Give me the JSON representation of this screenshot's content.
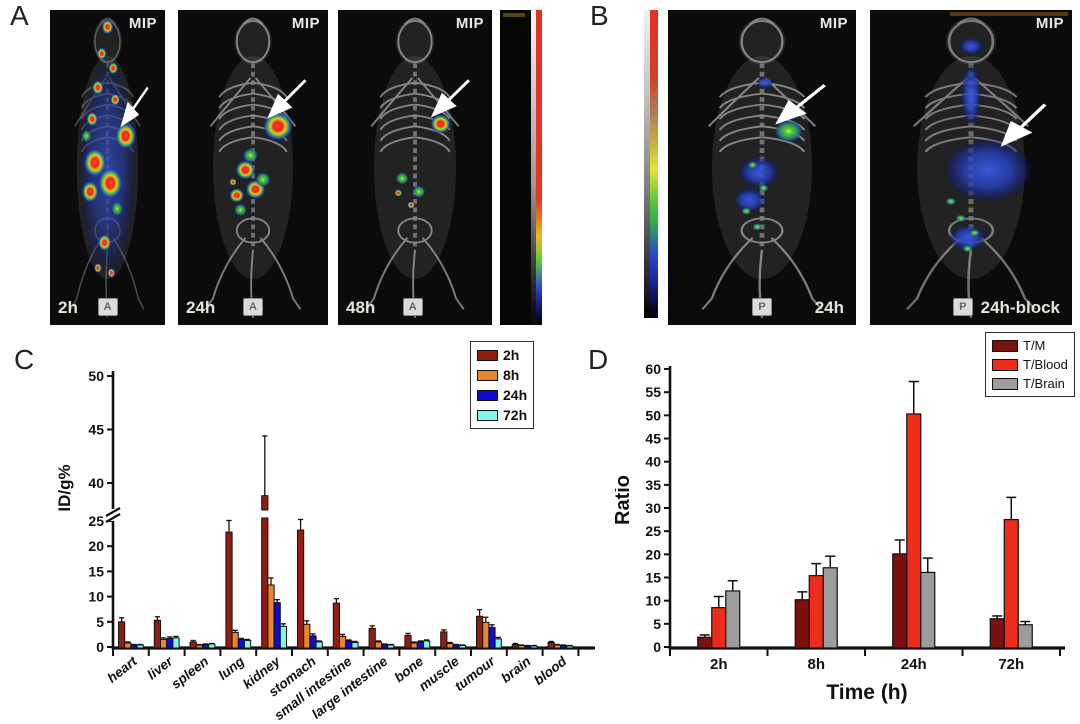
{
  "figure": {
    "panels": {
      "A": {
        "label": "A",
        "images": [
          {
            "mip_label": "MIP",
            "time_label": "2h",
            "orientation_badge": "A"
          },
          {
            "mip_label": "MIP",
            "time_label": "24h",
            "orientation_badge": "A"
          },
          {
            "mip_label": "MIP",
            "time_label": "48h",
            "orientation_badge": "A"
          }
        ],
        "colorbar": {
          "name": "pet-ct-intensity-scale",
          "top_color": "#e03020",
          "bottom_color": "#000000"
        }
      },
      "B": {
        "label": "B",
        "images": [
          {
            "mip_label": "MIP",
            "time_label": "24h",
            "orientation_badge": "P"
          },
          {
            "mip_label": "MIP",
            "time_label": "24h-block",
            "orientation_badge": "P"
          }
        ],
        "colorbar": {
          "name": "pet-rainbow-scale",
          "top_color": "#e83020",
          "bottom_color": "#000000"
        }
      },
      "C": {
        "label": "C"
      },
      "D": {
        "label": "D"
      }
    }
  },
  "chart_data": [
    {
      "panel": "C",
      "type": "bar",
      "title": "",
      "xlabel": "",
      "ylabel": "ID/g%",
      "categories": [
        "heart",
        "liver",
        "spleen",
        "lung",
        "kidney",
        "stomach",
        "small intestine",
        "large intestine",
        "bone",
        "muscle",
        "tumour",
        "brain",
        "blood"
      ],
      "series": [
        {
          "name": "2h",
          "color": "#8E1E12",
          "values": [
            5.0,
            5.3,
            1.0,
            22.8,
            35.0,
            23.2,
            8.7,
            3.7,
            2.3,
            3.0,
            6.1,
            0.5,
            0.9
          ],
          "errors": [
            0.8,
            0.7,
            0.3,
            2.4,
            9.4,
            2.4,
            0.9,
            0.5,
            0.4,
            0.4,
            1.3,
            0.2,
            0.2
          ]
        },
        {
          "name": "8h",
          "color": "#E9852F",
          "values": [
            0.8,
            1.5,
            0.4,
            2.9,
            12.3,
            4.5,
            2.1,
            1.0,
            0.8,
            0.7,
            4.9,
            0.3,
            0.4
          ],
          "errors": [
            0.2,
            0.3,
            0.1,
            0.4,
            1.4,
            0.7,
            0.4,
            0.2,
            0.2,
            0.2,
            1.0,
            0.1,
            0.1
          ]
        },
        {
          "name": "24h",
          "color": "#0D0DD2",
          "values": [
            0.4,
            1.7,
            0.5,
            1.5,
            8.8,
            2.2,
            1.2,
            0.5,
            1.0,
            0.4,
            3.9,
            0.2,
            0.3
          ],
          "errors": [
            0.1,
            0.3,
            0.1,
            0.2,
            0.6,
            0.4,
            0.2,
            0.1,
            0.2,
            0.1,
            0.5,
            0.1,
            0.1
          ]
        },
        {
          "name": "72h",
          "color": "#7EF6F2",
          "values": [
            0.4,
            1.8,
            0.6,
            1.3,
            4.1,
            1.0,
            0.9,
            0.4,
            1.2,
            0.3,
            1.6,
            0.2,
            0.2
          ],
          "errors": [
            0.1,
            0.3,
            0.1,
            0.2,
            0.5,
            0.2,
            0.2,
            0.1,
            0.2,
            0.1,
            0.3,
            0.1,
            0.1
          ]
        }
      ],
      "y_axis": {
        "lower_ticks": [
          0,
          5,
          10,
          15,
          20,
          25
        ],
        "upper_ticks": [
          40,
          45,
          50
        ],
        "break": {
          "from": 25,
          "to": 40
        },
        "lim": [
          0,
          50
        ]
      },
      "legend_position": "top-right",
      "grid": false
    },
    {
      "panel": "D",
      "type": "bar",
      "title": "",
      "xlabel": "Time (h)",
      "ylabel": "Ratio",
      "categories": [
        "2h",
        "8h",
        "24h",
        "72h"
      ],
      "series": [
        {
          "name": "T/M",
          "color": "#7B110E",
          "values": [
            2.1,
            10.2,
            20.1,
            6.1
          ],
          "errors": [
            0.5,
            1.7,
            3.0,
            0.6
          ]
        },
        {
          "name": "T/Blood",
          "color": "#EE2C1C",
          "values": [
            8.5,
            15.4,
            50.3,
            27.5
          ],
          "errors": [
            2.4,
            2.6,
            7.0,
            4.8
          ]
        },
        {
          "name": "T/Brain",
          "color": "#9C9C9C",
          "values": [
            12.1,
            17.1,
            16.1,
            4.8
          ],
          "errors": [
            2.2,
            2.5,
            3.1,
            0.7
          ]
        }
      ],
      "y_axis": {
        "lim": [
          0,
          60
        ],
        "tick_step": 5
      },
      "legend_position": "top-right",
      "grid": false
    }
  ]
}
